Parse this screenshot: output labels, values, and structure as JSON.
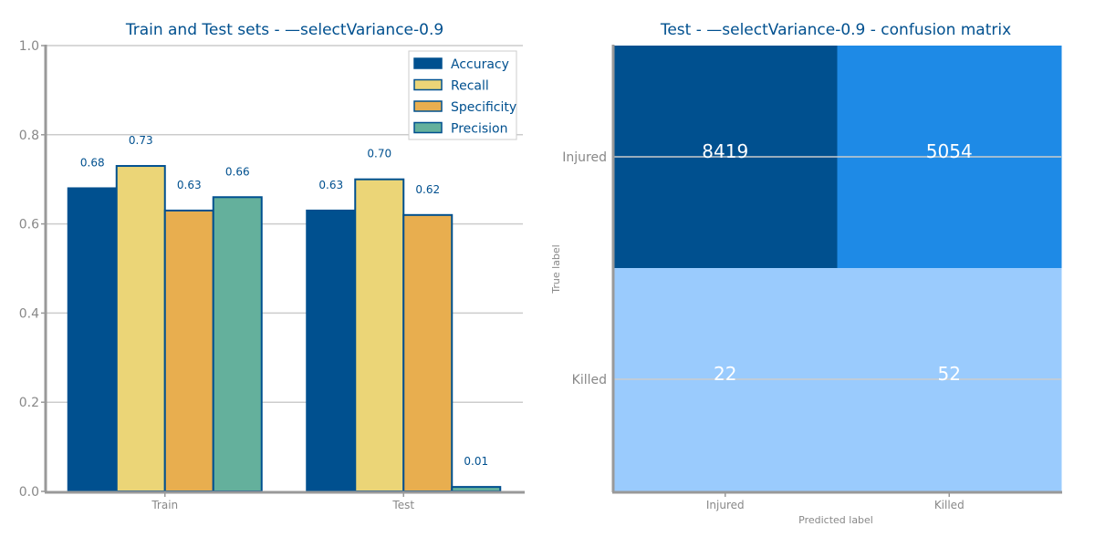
{
  "chart_data": [
    {
      "type": "bar",
      "title": "Train and Test sets - —selectVariance-0.9",
      "categories": [
        "Train",
        "Test"
      ],
      "ylim": [
        0,
        1.0
      ],
      "yticks": [
        "0.0",
        "0.2",
        "0.4",
        "0.6",
        "0.8",
        "1.0"
      ],
      "grid": true,
      "legend_position": "top-right",
      "series": [
        {
          "name": "Accuracy",
          "color": "#00508f",
          "values": [
            0.68,
            0.63
          ],
          "labels": [
            "0.68",
            "0.63"
          ]
        },
        {
          "name": "Recall",
          "color": "#ebd577",
          "values": [
            0.73,
            0.7
          ],
          "labels": [
            "0.73",
            "0.70"
          ]
        },
        {
          "name": "Specificity",
          "color": "#e8ae4f",
          "values": [
            0.63,
            0.62
          ],
          "labels": [
            "0.63",
            "0.62"
          ]
        },
        {
          "name": "Precision",
          "color": "#64b09c",
          "values": [
            0.66,
            0.01
          ],
          "labels": [
            "0.66",
            "0.01"
          ]
        }
      ]
    },
    {
      "type": "heatmap",
      "title": "Test - —selectVariance-0.9 - confusion matrix",
      "xlabel": "Predicted label",
      "ylabel": "True label",
      "x_categories": [
        "Injured",
        "Killed"
      ],
      "y_categories": [
        "Injured",
        "Killed"
      ],
      "values": [
        [
          8419,
          5054
        ],
        [
          22,
          52
        ]
      ],
      "labels": [
        [
          "8419",
          "5054"
        ],
        [
          "22",
          "52"
        ]
      ],
      "cell_colors": [
        [
          "#00508f",
          "#1e8ae6"
        ],
        [
          "#9acbfd",
          "#9acbfd"
        ]
      ]
    }
  ]
}
